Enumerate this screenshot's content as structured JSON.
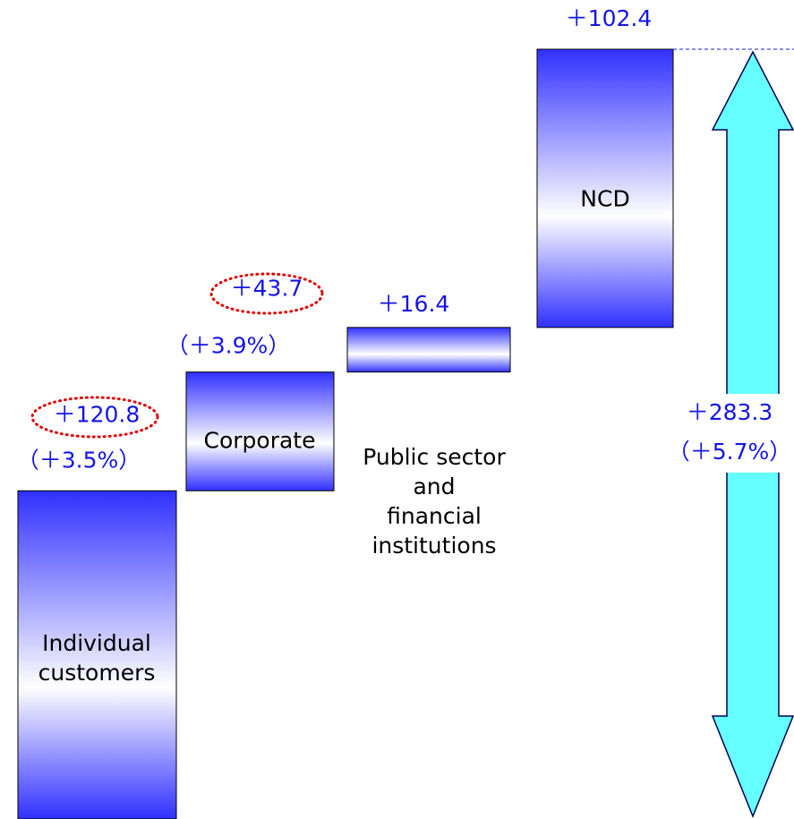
{
  "chart_data": {
    "type": "waterfall",
    "categories": [
      "Individual customers",
      "Corporate",
      "Public sector and financial institutions",
      "NCD"
    ],
    "values": [
      120.8,
      43.7,
      16.4,
      102.4
    ],
    "value_labels": [
      "＋120.8",
      "＋43.7",
      "＋16.4",
      "＋102.4"
    ],
    "change_labels": [
      "（＋3.5%）",
      "（＋3.9%）",
      null,
      null
    ],
    "total": 283.3,
    "total_label": "＋283.3",
    "total_change_label": "（＋5.7%）",
    "color": "#3030ff",
    "total_color": "#66ffff"
  }
}
